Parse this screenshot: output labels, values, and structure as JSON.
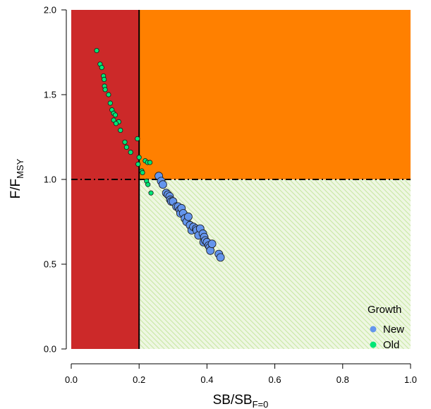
{
  "chart_data": {
    "type": "scatter",
    "xlabel_main": "SB/SB",
    "xlabel_sub": "F=0",
    "ylabel_main": "F/F",
    "ylabel_sub": "MSY",
    "xlim": [
      0,
      1.0
    ],
    "ylim": [
      0,
      2.0
    ],
    "x_ticks": [
      "0.0",
      "0.2",
      "0.4",
      "0.6",
      "0.8",
      "1.0"
    ],
    "y_ticks": [
      "0.0",
      "0.5",
      "1.0",
      "1.5",
      "2.0"
    ],
    "x_tick_values": [
      0,
      0.2,
      0.4,
      0.6,
      0.8,
      1.0
    ],
    "y_tick_values": [
      0,
      0.5,
      1.0,
      1.5,
      2.0
    ],
    "reference_lines": {
      "x": 0.2,
      "y": 1.0
    },
    "regions": [
      {
        "name": "red",
        "color": "#cc2929",
        "x": [
          0,
          0.2
        ],
        "y": [
          0,
          2.0
        ]
      },
      {
        "name": "orange",
        "color": "#ff8000",
        "x": [
          0.2,
          1.0
        ],
        "y": [
          1.0,
          2.0
        ]
      },
      {
        "name": "green-hatched",
        "color": "#c6e6a0",
        "x": [
          0.2,
          1.0
        ],
        "y": [
          0,
          1.0
        ]
      }
    ],
    "legend": {
      "title": "Growth",
      "position": "bottom-right",
      "entries": [
        {
          "label": "New",
          "color": "#6495ed"
        },
        {
          "label": "Old",
          "color": "#00e676"
        }
      ]
    },
    "grid": false,
    "series": [
      {
        "name": "Old",
        "color": "#00e676",
        "points": [
          [
            0.075,
            1.76
          ],
          [
            0.085,
            1.68
          ],
          [
            0.09,
            1.66
          ],
          [
            0.095,
            1.61
          ],
          [
            0.097,
            1.59
          ],
          [
            0.098,
            1.55
          ],
          [
            0.1,
            1.53
          ],
          [
            0.11,
            1.5
          ],
          [
            0.115,
            1.45
          ],
          [
            0.12,
            1.41
          ],
          [
            0.125,
            1.39
          ],
          [
            0.13,
            1.38
          ],
          [
            0.125,
            1.35
          ],
          [
            0.14,
            1.34
          ],
          [
            0.132,
            1.33
          ],
          [
            0.145,
            1.29
          ],
          [
            0.158,
            1.22
          ],
          [
            0.163,
            1.19
          ],
          [
            0.175,
            1.16
          ],
          [
            0.195,
            1.24
          ],
          [
            0.2,
            1.13
          ],
          [
            0.197,
            1.09
          ],
          [
            0.208,
            1.05
          ],
          [
            0.21,
            1.04
          ],
          [
            0.218,
            1.11
          ],
          [
            0.225,
            1.1
          ],
          [
            0.232,
            1.1
          ],
          [
            0.222,
            0.99
          ],
          [
            0.226,
            0.97
          ],
          [
            0.235,
            0.92
          ]
        ]
      },
      {
        "name": "New",
        "color": "#6495ed",
        "points": [
          [
            0.258,
            1.02
          ],
          [
            0.265,
            0.99
          ],
          [
            0.27,
            0.97
          ],
          [
            0.28,
            0.92
          ],
          [
            0.285,
            0.91
          ],
          [
            0.29,
            0.9
          ],
          [
            0.292,
            0.88
          ],
          [
            0.295,
            0.87
          ],
          [
            0.3,
            0.87
          ],
          [
            0.31,
            0.84
          ],
          [
            0.315,
            0.84
          ],
          [
            0.32,
            0.82
          ],
          [
            0.322,
            0.8
          ],
          [
            0.325,
            0.83
          ],
          [
            0.33,
            0.8
          ],
          [
            0.335,
            0.77
          ],
          [
            0.34,
            0.75
          ],
          [
            0.345,
            0.78
          ],
          [
            0.35,
            0.73
          ],
          [
            0.355,
            0.7
          ],
          [
            0.36,
            0.72
          ],
          [
            0.368,
            0.71
          ],
          [
            0.37,
            0.7
          ],
          [
            0.375,
            0.67
          ],
          [
            0.38,
            0.71
          ],
          [
            0.388,
            0.68
          ],
          [
            0.392,
            0.66
          ],
          [
            0.39,
            0.63
          ],
          [
            0.395,
            0.64
          ],
          [
            0.4,
            0.63
          ],
          [
            0.405,
            0.61
          ],
          [
            0.408,
            0.6
          ],
          [
            0.41,
            0.58
          ],
          [
            0.415,
            0.62
          ],
          [
            0.435,
            0.56
          ],
          [
            0.44,
            0.54
          ]
        ]
      }
    ]
  }
}
